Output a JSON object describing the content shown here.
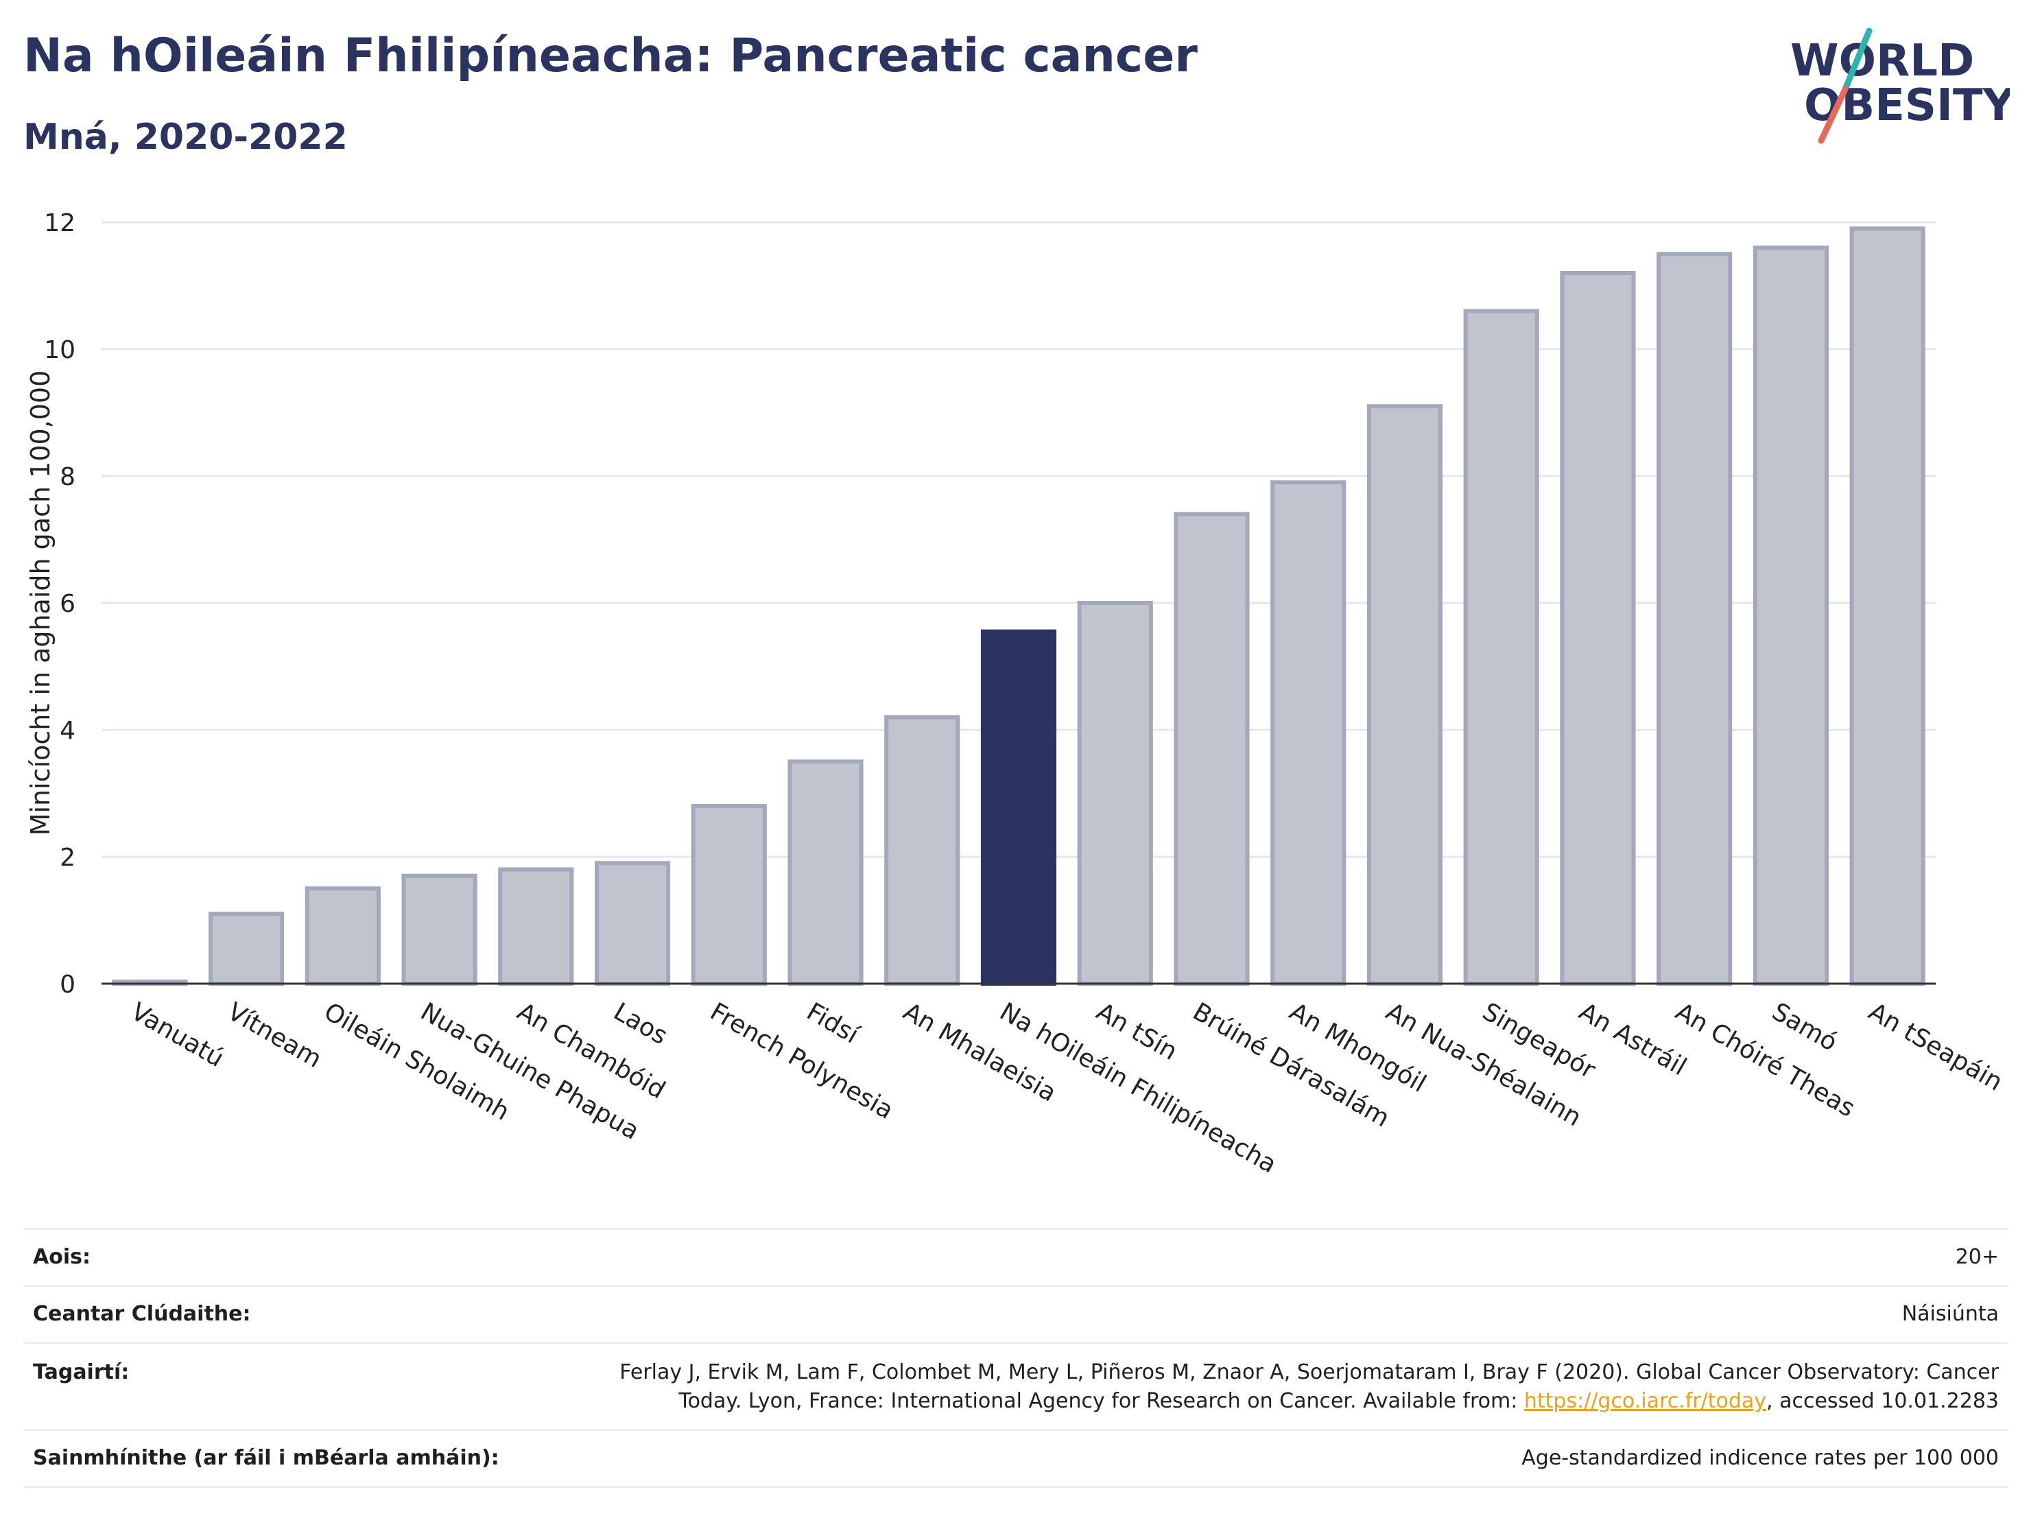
{
  "header": {
    "title": "Na hOileáin Fhilipíneacha: Pancreatic cancer",
    "subtitle": "Mná, 2020-2022"
  },
  "logo": {
    "line1": "WORLD",
    "line2": "OBESITY",
    "colors": {
      "text": "#2b3460",
      "slash_top": "#2fb4ad",
      "slash_bottom": "#e8685a"
    }
  },
  "chart_data": {
    "type": "bar",
    "ylabel": "Minicíocht in aghaidh gach 100,000",
    "xlabel": "",
    "ylim": [
      0,
      12
    ],
    "yticks": [
      0,
      2,
      4,
      6,
      8,
      10,
      12
    ],
    "grid": true,
    "highlight": "Na hOileáin Fhilipíneacha",
    "colors": {
      "bar": "#c1c4cf",
      "bar_edge": "#a3a8bb",
      "highlight": "#2b3460"
    },
    "categories": [
      "Vanuatú",
      "Vítneam",
      "Oileáin Sholaimh",
      "Nua-Ghuine Phapua",
      "An Chambóid",
      "Laos",
      "French Polynesia",
      "Fidsí",
      "An Mhalaeisia",
      "Na hOileáin Fhilipíneacha",
      "An tSín",
      "Brúiné Dárasalám",
      "An Mhongóil",
      "An Nua-Shéalainn",
      "Singeapór",
      "An Astráil",
      "An Chóiré Theas",
      "Samó",
      "An tSeapáin"
    ],
    "values": [
      0.03,
      1.1,
      1.5,
      1.7,
      1.8,
      1.9,
      2.8,
      3.5,
      4.2,
      5.55,
      6.0,
      7.4,
      7.9,
      9.1,
      10.6,
      11.2,
      11.5,
      11.6,
      11.9
    ]
  },
  "footer": {
    "age_label": "Aois:",
    "age_value": "20+",
    "area_label": "Ceantar Clúdaithe:",
    "area_value": "Náisiúnta",
    "ref_label": "Tagairtí:",
    "ref_line1": "Ferlay J, Ervik M, Lam F, Colombet M, Mery L, Piñeros M, Znaor A, Soerjomataram I, Bray F (2020). Global Cancer Observatory: Cancer",
    "ref_line2_pre": "Today. Lyon, France: International Agency for Research on Cancer. Available from: ",
    "ref_link": "https://gco.iarc.fr/today",
    "ref_line2_post": ", accessed 10.01.2283",
    "def_label": "Sainmhínithe (ar fáil i mBéarla amháin):",
    "def_value": "Age-standardized indicence rates per 100 000"
  }
}
